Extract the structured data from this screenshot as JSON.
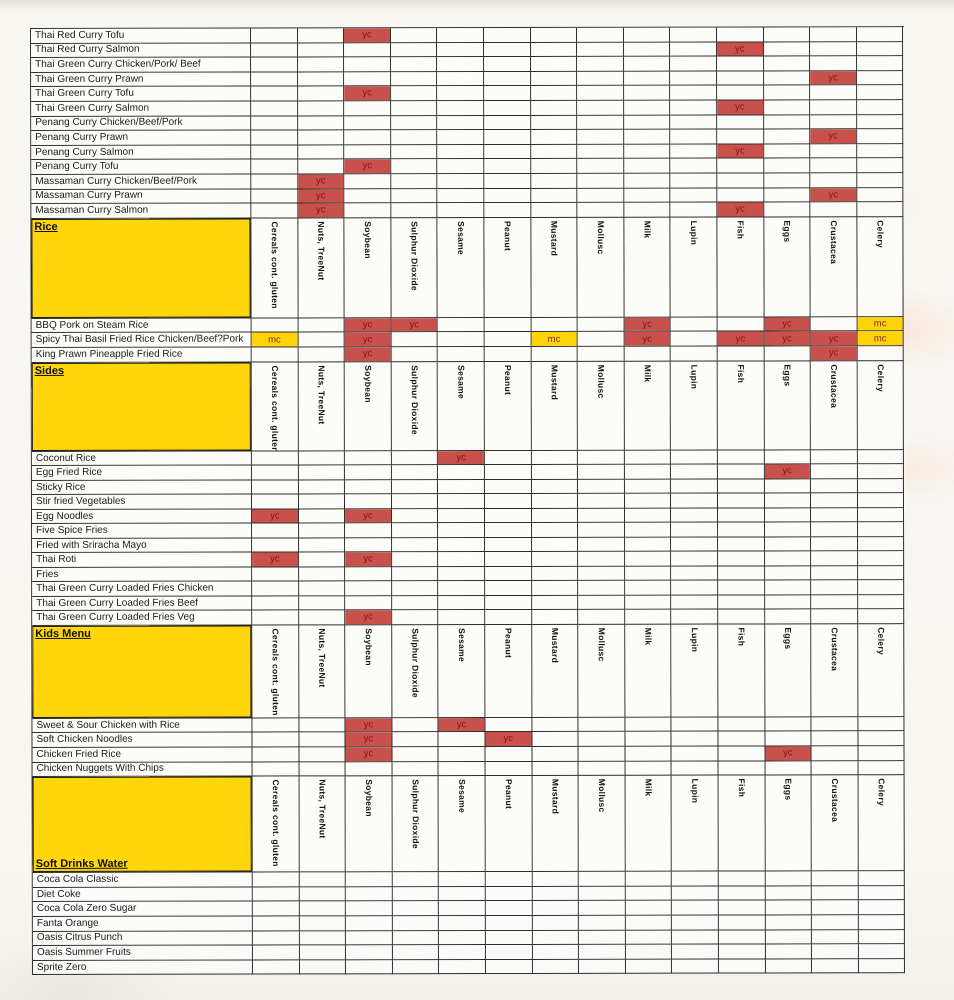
{
  "table": {
    "mark_styles": {
      "yc": {
        "bg": "#c9514b",
        "text": "#7e1717"
      },
      "mc": {
        "bg": "#ffd30a",
        "text": "#7c2e1c"
      }
    },
    "section_header_bg": "#ffd60b",
    "columns": [
      {
        "key": "gluten",
        "label": "Cereals cont. gluten"
      },
      {
        "key": "nuts",
        "label": "Nuts, TreeNut"
      },
      {
        "key": "soybean",
        "label": "Soybean"
      },
      {
        "key": "sulphur",
        "label": "Sulphur Dioxide"
      },
      {
        "key": "sesame",
        "label": "Sesame"
      },
      {
        "key": "peanut",
        "label": "Peanut"
      },
      {
        "key": "mustard",
        "label": "Mustard"
      },
      {
        "key": "mollusc",
        "label": "Mollusc"
      },
      {
        "key": "milk",
        "label": "Milk"
      },
      {
        "key": "lupin",
        "label": "Lupin"
      },
      {
        "key": "fish",
        "label": "Fish"
      },
      {
        "key": "eggs",
        "label": "Eggs"
      },
      {
        "key": "crustacea",
        "label": "Crustacea"
      },
      {
        "key": "celery",
        "label": "Celery"
      }
    ],
    "sections": [
      {
        "id": "curries",
        "header": null,
        "rows": [
          {
            "name": "Thai Red Curry Tofu",
            "marks": {
              "soybean": "yc"
            }
          },
          {
            "name": "Thai Red Curry Salmon",
            "marks": {
              "fish": "yc"
            }
          },
          {
            "name": "Thai Green Curry Chicken/Pork/ Beef",
            "marks": {}
          },
          {
            "name": "Thai Green Curry Prawn",
            "marks": {
              "crustacea": "yc"
            }
          },
          {
            "name": "Thai Green  Curry Tofu",
            "marks": {
              "soybean": "yc"
            }
          },
          {
            "name": "Thai Green Curry Salmon",
            "marks": {
              "fish": "yc"
            }
          },
          {
            "name": "Penang Curry Chicken/Beef/Pork",
            "marks": {}
          },
          {
            "name": "Penang Curry Prawn",
            "marks": {
              "crustacea": "yc"
            }
          },
          {
            "name": "Penang Curry Salmon",
            "marks": {
              "fish": "yc"
            }
          },
          {
            "name": "Penang Curry  Tofu",
            "marks": {
              "soybean": "yc"
            }
          },
          {
            "name": "Massaman Curry Chicken/Beef/Pork",
            "marks": {
              "nuts": "yc"
            }
          },
          {
            "name": "Massaman Curry Prawn",
            "marks": {
              "nuts": "yc",
              "crustacea": "yc"
            }
          },
          {
            "name": "Massaman Curry Salmon",
            "marks": {
              "nuts": "yc",
              "fish": "yc"
            }
          }
        ]
      },
      {
        "id": "rice",
        "header": {
          "label": "Rice",
          "position": "top"
        },
        "rows": [
          {
            "name": "BBQ Pork on Steam Rice",
            "marks": {
              "soybean": "yc",
              "sulphur": "yc",
              "milk": "yc",
              "eggs": "yc",
              "celery": "mc"
            }
          },
          {
            "name": "Spicy Thai Basil Fried Rice Chicken/Beef?Pork",
            "marks": {
              "gluten": "mc",
              "soybean": "yc",
              "mustard": "mc",
              "milk": "yc",
              "fish": "yc",
              "eggs": "yc",
              "crustacea": "yc",
              "celery": "mc"
            }
          },
          {
            "name": "King Prawn Pineapple Fried Rice",
            "marks": {
              "soybean": "yc",
              "crustacea": "yc"
            }
          }
        ]
      },
      {
        "id": "sides",
        "header": {
          "label": "Sides",
          "position": "top"
        },
        "rows": [
          {
            "name": "Coconut Rice",
            "marks": {
              "sesame": "yc"
            }
          },
          {
            "name": "Egg Fried Rice",
            "marks": {
              "eggs": "yc"
            }
          },
          {
            "name": "Sticky Rice",
            "marks": {}
          },
          {
            "name": "Stir fried Vegetables",
            "marks": {}
          },
          {
            "name": "Egg Noodles",
            "marks": {
              "gluten": "yc",
              "soybean": "yc"
            }
          },
          {
            "name": "Five Spice Fries",
            "marks": {}
          },
          {
            "name": "Fried with Sriracha Mayo",
            "marks": {}
          },
          {
            "name": "Thai Roti",
            "marks": {
              "gluten": "yc",
              "soybean": "yc"
            }
          },
          {
            "name": "Fries",
            "marks": {}
          },
          {
            "name": "Thai Green Curry Loaded Fries Chicken",
            "marks": {}
          },
          {
            "name": "Thai Green Curry Loaded Fries Beef",
            "marks": {}
          },
          {
            "name": "Thai Green Curry Loaded Fries Veg",
            "marks": {
              "soybean": "yc"
            }
          }
        ]
      },
      {
        "id": "kids",
        "header": {
          "label": "Kids Menu",
          "position": "top"
        },
        "rows": [
          {
            "name": "Sweet & Sour Chicken with Rice",
            "marks": {
              "soybean": "yc",
              "sesame": "yc"
            }
          },
          {
            "name": "Soft Chicken Noodles",
            "marks": {
              "soybean": "yc",
              "peanut": "yc"
            }
          },
          {
            "name": "Chicken Fried Rice",
            "marks": {
              "soybean": "yc",
              "eggs": "yc"
            }
          },
          {
            "name": "Chicken Nuggets With Chips",
            "marks": {}
          }
        ]
      },
      {
        "id": "drinks",
        "header": {
          "label": "Soft Drinks Water",
          "position": "bottom"
        },
        "rows": [
          {
            "name": "Coca Cola Classic",
            "marks": {}
          },
          {
            "name": "Diet Coke",
            "marks": {}
          },
          {
            "name": "Coca Cola Zero Sugar",
            "marks": {}
          },
          {
            "name": "Fanta Orange",
            "marks": {}
          },
          {
            "name": "Oasis Citrus Punch",
            "marks": {}
          },
          {
            "name": "Oasis Summer Fruits",
            "marks": {}
          },
          {
            "name": "Sprite Zero",
            "marks": {}
          }
        ]
      }
    ]
  }
}
